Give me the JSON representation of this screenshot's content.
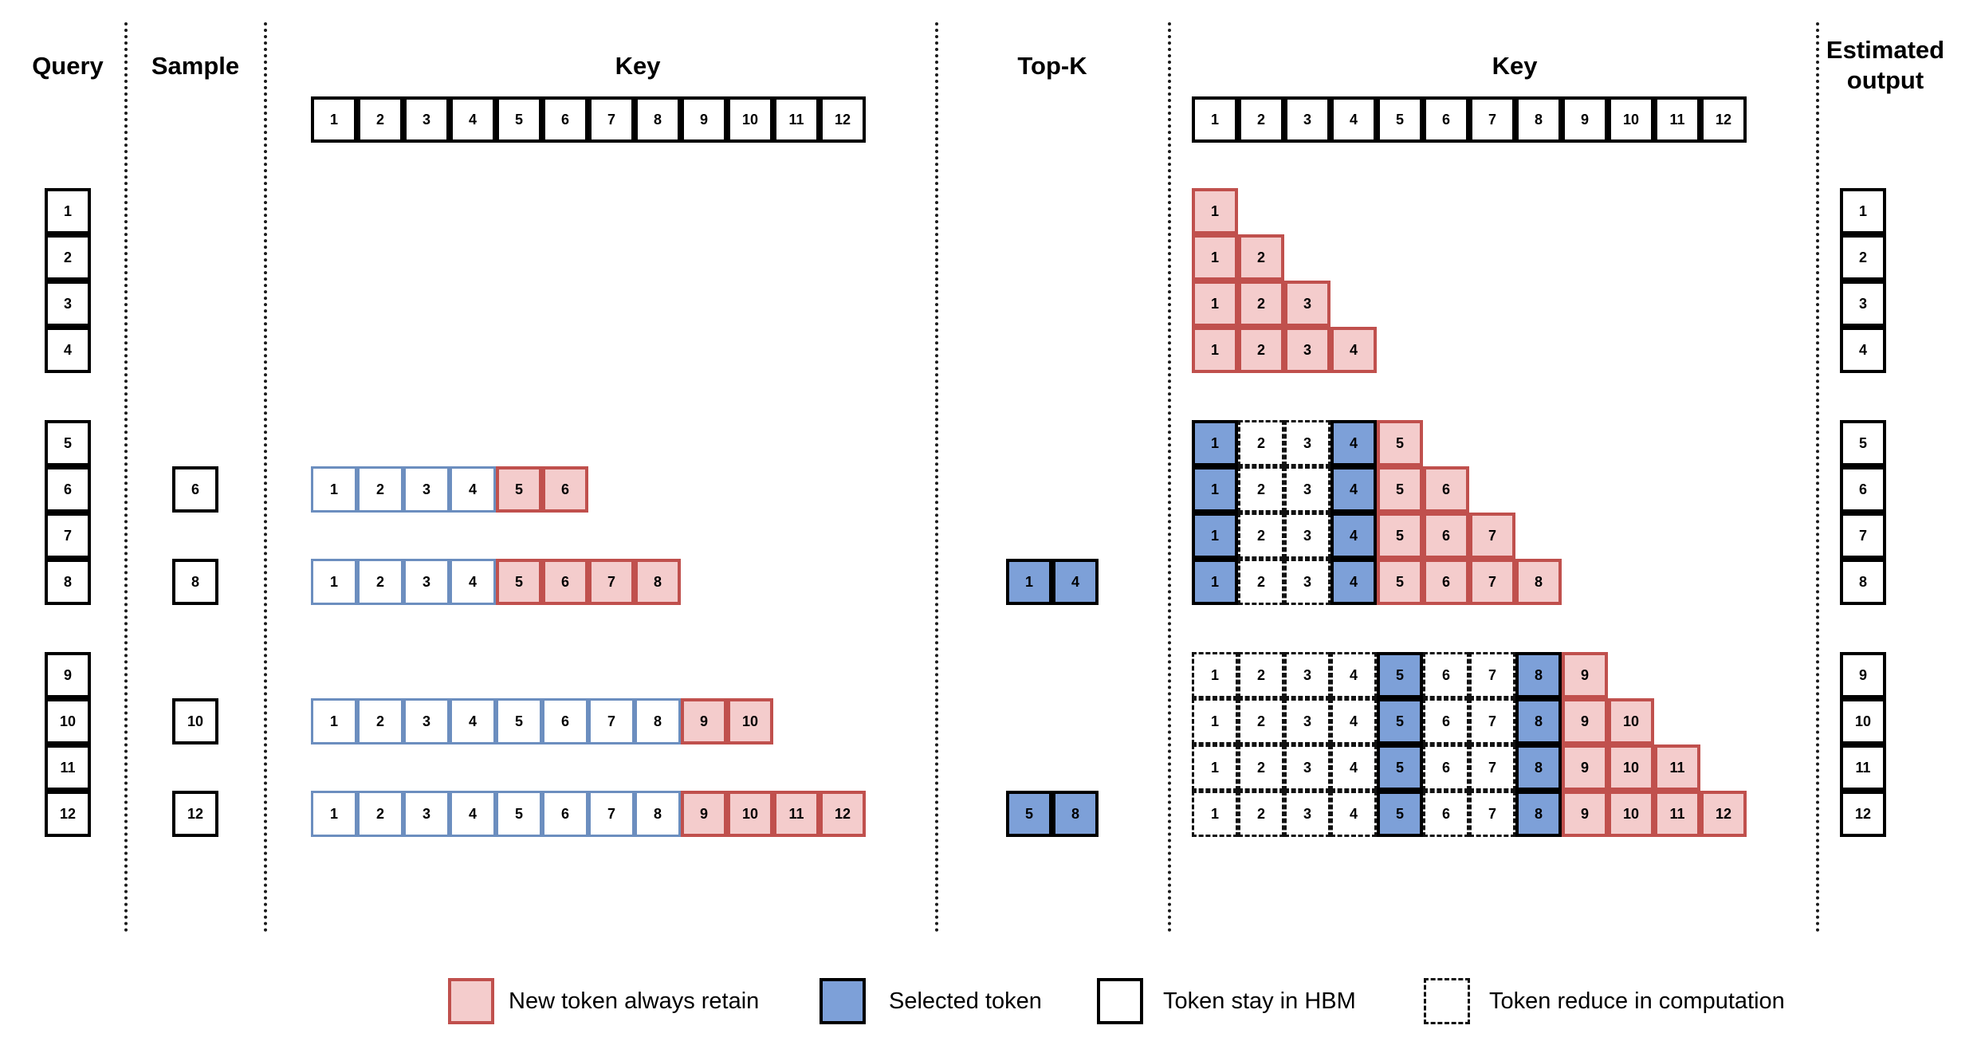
{
  "headers": {
    "query": "Query",
    "sample": "Sample",
    "key_left": "Key",
    "topk": "Top-K",
    "key_right": "Key",
    "estimated": "Estimated\noutput"
  },
  "key_row_labels": [
    "1",
    "2",
    "3",
    "4",
    "5",
    "6",
    "7",
    "8",
    "9",
    "10",
    "11",
    "12"
  ],
  "query_groups": [
    [
      "1",
      "2",
      "3",
      "4"
    ],
    [
      "5",
      "6",
      "7",
      "8"
    ],
    [
      "9",
      "10",
      "11",
      "12"
    ]
  ],
  "samples": [
    "6",
    "8",
    "10",
    "12"
  ],
  "sampled_keys": [
    {
      "query": "6",
      "keys": [
        {
          "label": "1",
          "kind": "score",
          "alpha": 0.62
        },
        {
          "label": "2",
          "kind": "score",
          "alpha": 0.55
        },
        {
          "label": "3",
          "kind": "score",
          "alpha": 0.22
        },
        {
          "label": "4",
          "kind": "score",
          "alpha": 0.38
        },
        {
          "label": "5",
          "kind": "new"
        },
        {
          "label": "6",
          "kind": "new"
        }
      ]
    },
    {
      "query": "8",
      "keys": [
        {
          "label": "1",
          "kind": "score",
          "alpha": 0.14
        },
        {
          "label": "2",
          "kind": "score",
          "alpha": 0.3
        },
        {
          "label": "3",
          "kind": "score",
          "alpha": 0.45
        },
        {
          "label": "4",
          "kind": "score",
          "alpha": 0.95
        },
        {
          "label": "5",
          "kind": "new"
        },
        {
          "label": "6",
          "kind": "new"
        },
        {
          "label": "7",
          "kind": "new"
        },
        {
          "label": "8",
          "kind": "new"
        }
      ]
    },
    {
      "query": "10",
      "keys": [
        {
          "label": "1",
          "kind": "score",
          "alpha": 0.5
        },
        {
          "label": "2",
          "kind": "score",
          "alpha": 0.14
        },
        {
          "label": "3",
          "kind": "score",
          "alpha": 0.18
        },
        {
          "label": "4",
          "kind": "score",
          "alpha": 0.25
        },
        {
          "label": "5",
          "kind": "score",
          "alpha": 0.72
        },
        {
          "label": "6",
          "kind": "score",
          "alpha": 0.22
        },
        {
          "label": "7",
          "kind": "score",
          "alpha": 0.5
        },
        {
          "label": "8",
          "kind": "score",
          "alpha": 0.42
        },
        {
          "label": "9",
          "kind": "new"
        },
        {
          "label": "10",
          "kind": "new"
        }
      ]
    },
    {
      "query": "12",
      "keys": [
        {
          "label": "1",
          "kind": "score",
          "alpha": 0.4
        },
        {
          "label": "2",
          "kind": "score",
          "alpha": 0.6
        },
        {
          "label": "3",
          "kind": "score",
          "alpha": 0.65
        },
        {
          "label": "4",
          "kind": "score",
          "alpha": 0.14
        },
        {
          "label": "5",
          "kind": "score",
          "alpha": 0.1
        },
        {
          "label": "6",
          "kind": "score",
          "alpha": 0.22
        },
        {
          "label": "7",
          "kind": "score",
          "alpha": 0.4
        },
        {
          "label": "8",
          "kind": "score",
          "alpha": 0.85
        },
        {
          "label": "9",
          "kind": "new"
        },
        {
          "label": "10",
          "kind": "new"
        },
        {
          "label": "11",
          "kind": "new"
        },
        {
          "label": "12",
          "kind": "new"
        }
      ]
    }
  ],
  "topk": [
    {
      "after_query": "8",
      "keys": [
        "1",
        "4"
      ]
    },
    {
      "after_query": "12",
      "keys": [
        "5",
        "8"
      ]
    }
  ],
  "estimated_output": [
    [
      "1",
      "2",
      "3",
      "4"
    ],
    [
      "5",
      "6",
      "7",
      "8"
    ],
    [
      "9",
      "10",
      "11",
      "12"
    ]
  ],
  "colors": {
    "new_fill": "#f4cccc",
    "new_border": "#c0504d",
    "selected_fill": "#7da0d8",
    "selected_border": "#000000",
    "score_base": "#6c8ebf"
  },
  "legend": [
    {
      "kind": "new",
      "label": "New token always retain"
    },
    {
      "kind": "selected",
      "label": "Selected token"
    },
    {
      "kind": "hbm",
      "label": "Token stay in HBM"
    },
    {
      "kind": "reduced",
      "label": "Token reduce in computation"
    }
  ]
}
